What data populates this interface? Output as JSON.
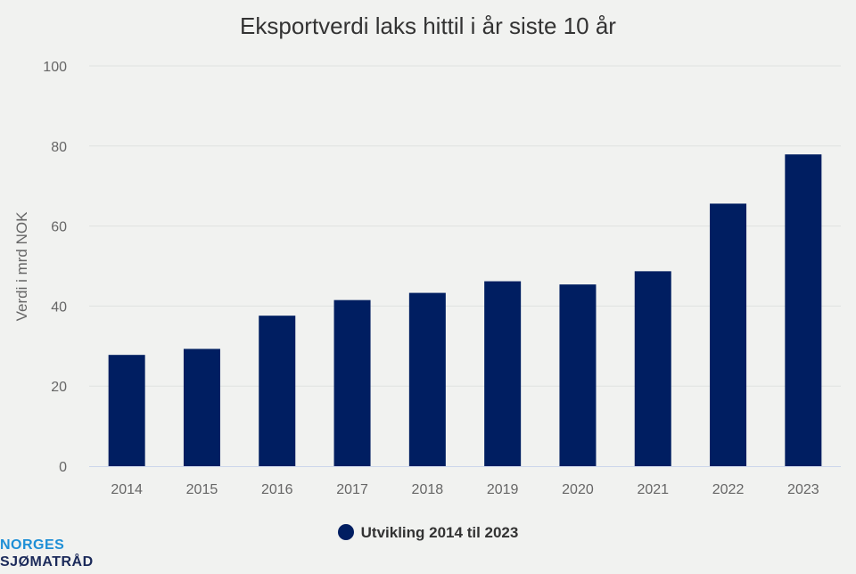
{
  "chart_data": {
    "type": "bar",
    "title": "Eksportverdi laks hittil i år siste 10 år",
    "xlabel": "",
    "ylabel": "Verdi i mrd NOK",
    "ylim": [
      0,
      100
    ],
    "yticks": [
      0,
      20,
      40,
      60,
      80,
      100
    ],
    "categories": [
      "2014",
      "2015",
      "2016",
      "2017",
      "2018",
      "2019",
      "2020",
      "2021",
      "2022",
      "2023"
    ],
    "series": [
      {
        "name": "Utvikling 2014 til 2023",
        "color": "#001e61",
        "values": [
          27.8,
          29.3,
          37.6,
          41.5,
          43.3,
          46.2,
          45.4,
          48.7,
          65.6,
          77.9
        ]
      }
    ],
    "grid": true,
    "legend": "bottom-center"
  },
  "logo": {
    "line1": "NORGES",
    "line2": "SJØMATRÅD"
  }
}
